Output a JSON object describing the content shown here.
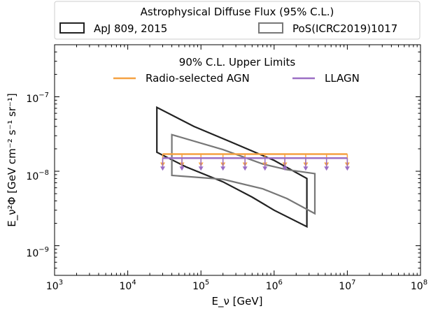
{
  "chart_data": {
    "type": "line",
    "xlabel": "E_ν [GeV]",
    "ylabel": "E_ν²Φ [GeV cm⁻² s⁻¹ sr⁻¹]",
    "xscale": "log",
    "yscale": "log",
    "xlim": [
      1000,
      100000000
    ],
    "ylim": [
      4e-10,
      5e-07
    ],
    "x_tick_labels": [
      {
        "base": "10",
        "exp": "3",
        "value": 1000
      },
      {
        "base": "10",
        "exp": "4",
        "value": 10000
      },
      {
        "base": "10",
        "exp": "5",
        "value": 100000
      },
      {
        "base": "10",
        "exp": "6",
        "value": 1000000
      },
      {
        "base": "10",
        "exp": "7",
        "value": 10000000
      },
      {
        "base": "10",
        "exp": "8",
        "value": 100000000
      }
    ],
    "y_tick_labels": [
      {
        "base": "10",
        "exp": "−9",
        "value": 1e-09
      },
      {
        "base": "10",
        "exp": "−8",
        "value": 1e-08
      },
      {
        "base": "10",
        "exp": "−7",
        "value": 1e-07
      }
    ],
    "grid": false,
    "legend_top": {
      "title": "Astrophysical Diffuse Flux (95% C.L.)",
      "placement": "above-plot",
      "entries": [
        "ApJ 809, 2015",
        "PoS(ICRC2019)1017"
      ]
    },
    "legend_inner": {
      "title": "90% C.L. Upper Limits",
      "placement": "top-center",
      "entries": [
        "Radio-selected AGN",
        "LLAGN"
      ]
    },
    "contours": [
      {
        "name": "ApJ 809, 2015",
        "color": "#222222",
        "points": [
          [
            25000,
            7.2e-08
          ],
          [
            25000,
            1.8e-08
          ],
          [
            62000,
            1.15e-08
          ],
          [
            200000,
            7.2e-09
          ],
          [
            500000,
            4.5e-09
          ],
          [
            1000000,
            3e-09
          ],
          [
            2800000,
            1.8e-09
          ],
          [
            2800000,
            8e-09
          ],
          [
            1000000,
            1.4e-08
          ],
          [
            250000,
            2.5e-08
          ],
          [
            80000,
            4e-08
          ]
        ]
      },
      {
        "name": "PoS(ICRC2019)1017",
        "color": "#777777",
        "points": [
          [
            40000,
            3.1e-08
          ],
          [
            40000,
            8.8e-09
          ],
          [
            200000,
            7.8e-09
          ],
          [
            700000,
            5.8e-09
          ],
          [
            1500000,
            4.3e-09
          ],
          [
            3600000,
            2.7e-09
          ],
          [
            3600000,
            9.3e-09
          ],
          [
            1500000,
            1.05e-08
          ],
          [
            700000,
            1.25e-08
          ],
          [
            200000,
            1.95e-08
          ]
        ]
      }
    ],
    "series": [
      {
        "name": "Radio-selected AGN",
        "color": "#f5a142",
        "x_range": [
          30000,
          10000000
        ],
        "value": 1.7e-08,
        "arrow_x": [
          30000,
          55000,
          100000,
          200000,
          400000,
          750000,
          1400000,
          2700000,
          5200000,
          10000000
        ]
      },
      {
        "name": "LLAGN",
        "color": "#9b6fc4",
        "x_range": [
          30000,
          10000000
        ],
        "value": 1.5e-08,
        "arrow_x": [
          30000,
          55000,
          100000,
          200000,
          400000,
          750000,
          1400000,
          2700000,
          5200000,
          10000000
        ]
      }
    ]
  }
}
